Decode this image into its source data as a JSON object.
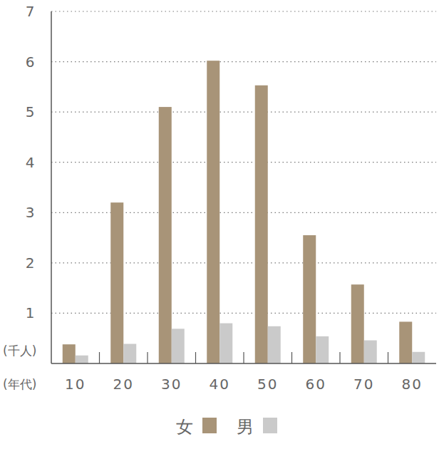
{
  "chart_data": {
    "type": "bar",
    "x_label": "(年代)",
    "y_label": "(千人)",
    "categories": [
      "10",
      "20",
      "30",
      "40",
      "50",
      "60",
      "70",
      "80"
    ],
    "series": [
      {
        "name": "女",
        "color": "#a89478",
        "values": [
          0.38,
          3.2,
          5.1,
          6.02,
          5.53,
          2.55,
          1.57,
          0.83
        ]
      },
      {
        "name": "男",
        "color": "#cacaca",
        "values": [
          0.16,
          0.39,
          0.69,
          0.8,
          0.74,
          0.54,
          0.46,
          0.23
        ]
      }
    ],
    "ylim": [
      0,
      7
    ],
    "yticks": [
      1,
      2,
      3,
      4,
      5,
      6,
      7
    ],
    "grid": true,
    "legend": "bottom"
  }
}
